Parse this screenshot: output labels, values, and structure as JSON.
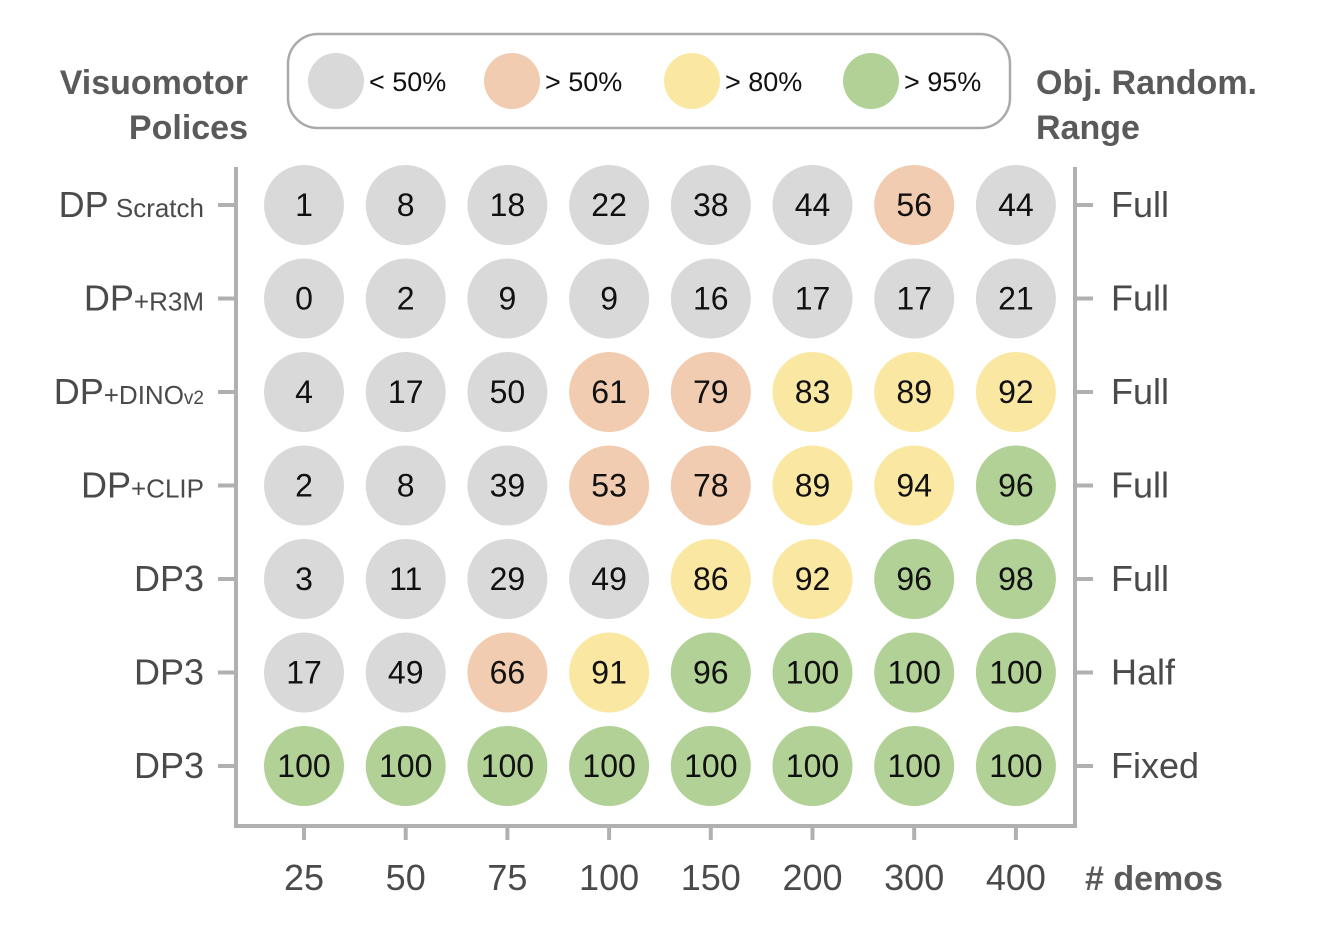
{
  "left_header": [
    "Visuomotor",
    "Polices"
  ],
  "right_header": [
    "Obj. Random.",
    "Range"
  ],
  "legend": [
    {
      "label": "< 50%",
      "color": "#d9d9d9"
    },
    {
      "label": "> 50%",
      "color": "#f1ccb0"
    },
    {
      "label": "> 80%",
      "color": "#fae7a2"
    },
    {
      "label": "> 95%",
      "color": "#b1d196"
    }
  ],
  "chart_data": {
    "type": "heatmap",
    "xlabel": "# demos",
    "x": [
      "25",
      "50",
      "75",
      "100",
      "150",
      "200",
      "300",
      "400"
    ],
    "rows": [
      {
        "main": "DP",
        "sub": " Scratch",
        "subsub": "",
        "range": "Full",
        "values": [
          1,
          8,
          18,
          22,
          38,
          44,
          56,
          44
        ]
      },
      {
        "main": "DP",
        "sub": "+R3M",
        "subsub": "",
        "range": "Full",
        "values": [
          0,
          2,
          9,
          9,
          16,
          17,
          17,
          21
        ]
      },
      {
        "main": "DP",
        "sub": "+DINO",
        "subsub": "v2",
        "range": "Full",
        "values": [
          4,
          17,
          50,
          61,
          79,
          83,
          89,
          92
        ]
      },
      {
        "main": "DP",
        "sub": "+CLIP",
        "subsub": "",
        "range": "Full",
        "values": [
          2,
          8,
          39,
          53,
          78,
          89,
          94,
          96
        ]
      },
      {
        "main": "DP3",
        "sub": "",
        "subsub": "",
        "range": "Full",
        "values": [
          3,
          11,
          29,
          49,
          86,
          92,
          96,
          98
        ]
      },
      {
        "main": "DP3",
        "sub": "",
        "subsub": "",
        "range": "Half",
        "values": [
          17,
          49,
          66,
          91,
          96,
          100,
          100,
          100
        ]
      },
      {
        "main": "DP3",
        "sub": "",
        "subsub": "",
        "range": "Fixed",
        "values": [
          100,
          100,
          100,
          100,
          100,
          100,
          100,
          100
        ]
      }
    ],
    "color_thresholds": [
      50,
      80,
      95
    ]
  }
}
